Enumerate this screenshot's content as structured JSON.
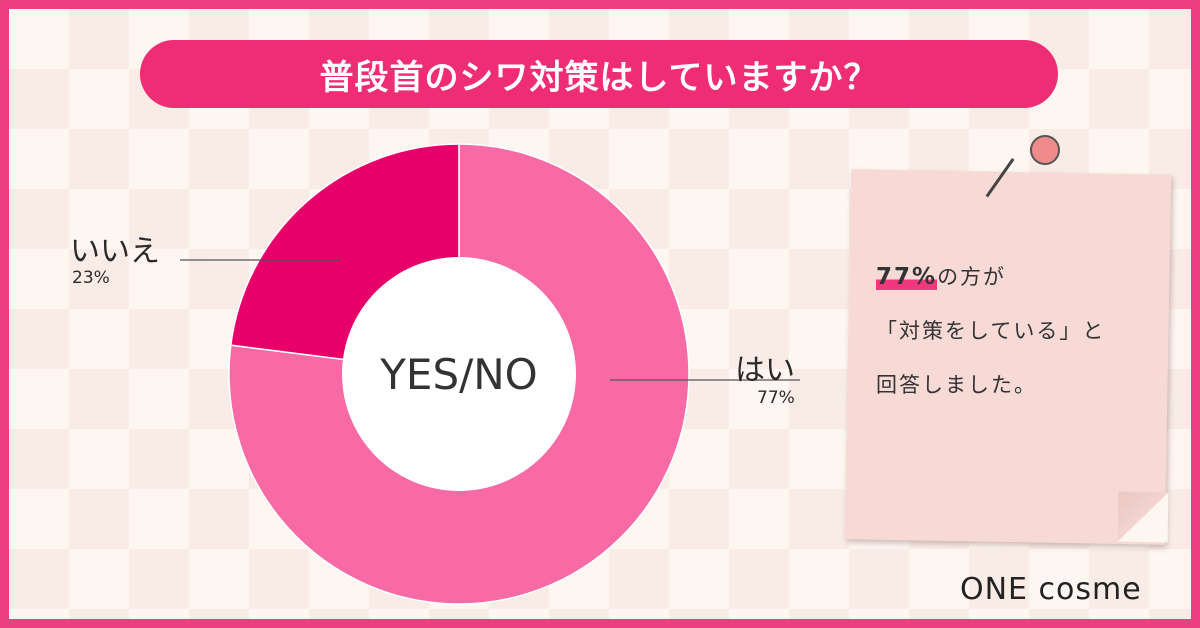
{
  "title": "普段首のシワ対策はしていますか？",
  "chart_data": {
    "type": "pie",
    "center_label": "YES/NO",
    "categories": [
      "はい",
      "いいえ"
    ],
    "values": [
      77,
      23
    ],
    "value_labels": [
      "77%",
      "23%"
    ],
    "colors": [
      "#f76aa5",
      "#e8006a"
    ]
  },
  "note": {
    "highlight": "77%",
    "line1_rest": "の方が",
    "line2": "「対策をしている」と",
    "line3": "回答しました。"
  },
  "logo": "ONE cosme",
  "colors": {
    "accent": "#ee2d74",
    "border": "#ee3e80"
  }
}
